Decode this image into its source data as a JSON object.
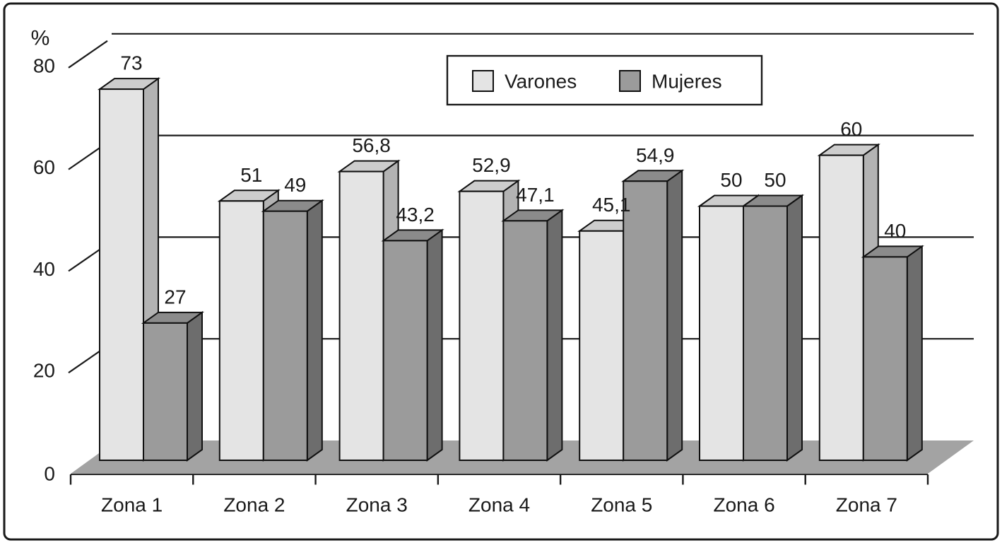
{
  "chart_data": {
    "type": "bar",
    "style": "3d-grouped-columns",
    "title": "",
    "ylabel": "%",
    "yticks": [
      0,
      20,
      40,
      60,
      80
    ],
    "ytick_labels": [
      "0",
      "20",
      "40",
      "60",
      "80"
    ],
    "ylim": [
      0,
      80
    ],
    "grid": true,
    "legend_position": "top-center",
    "categories": [
      "Zona 1",
      "Zona 2",
      "Zona 3",
      "Zona 4",
      "Zona 5",
      "Zona 6",
      "Zona 7"
    ],
    "series": [
      {
        "name": "Varones",
        "values": [
          73,
          51,
          56.8,
          52.9,
          45.1,
          50,
          60
        ],
        "labels": [
          "73",
          "51",
          "56,8",
          "52,9",
          "45,1",
          "50",
          "60"
        ],
        "colors": {
          "front": "#e4e4e4",
          "top": "#cdcdcd",
          "side": "#b3b3b3"
        }
      },
      {
        "name": "Mujeres",
        "values": [
          27,
          49,
          43.2,
          47.1,
          54.9,
          50,
          40
        ],
        "labels": [
          "27",
          "49",
          "43,2",
          "47,1",
          "54,9",
          "50",
          "40"
        ],
        "colors": {
          "front": "#9b9b9b",
          "top": "#8b8b8b",
          "side": "#6d6d6d"
        }
      }
    ],
    "colors": {
      "background": "#ffffff",
      "outline": "#1a1a1a",
      "bar_stroke": "#101010",
      "floor": "#a3a3a3",
      "text": "#1a1a1a"
    }
  }
}
